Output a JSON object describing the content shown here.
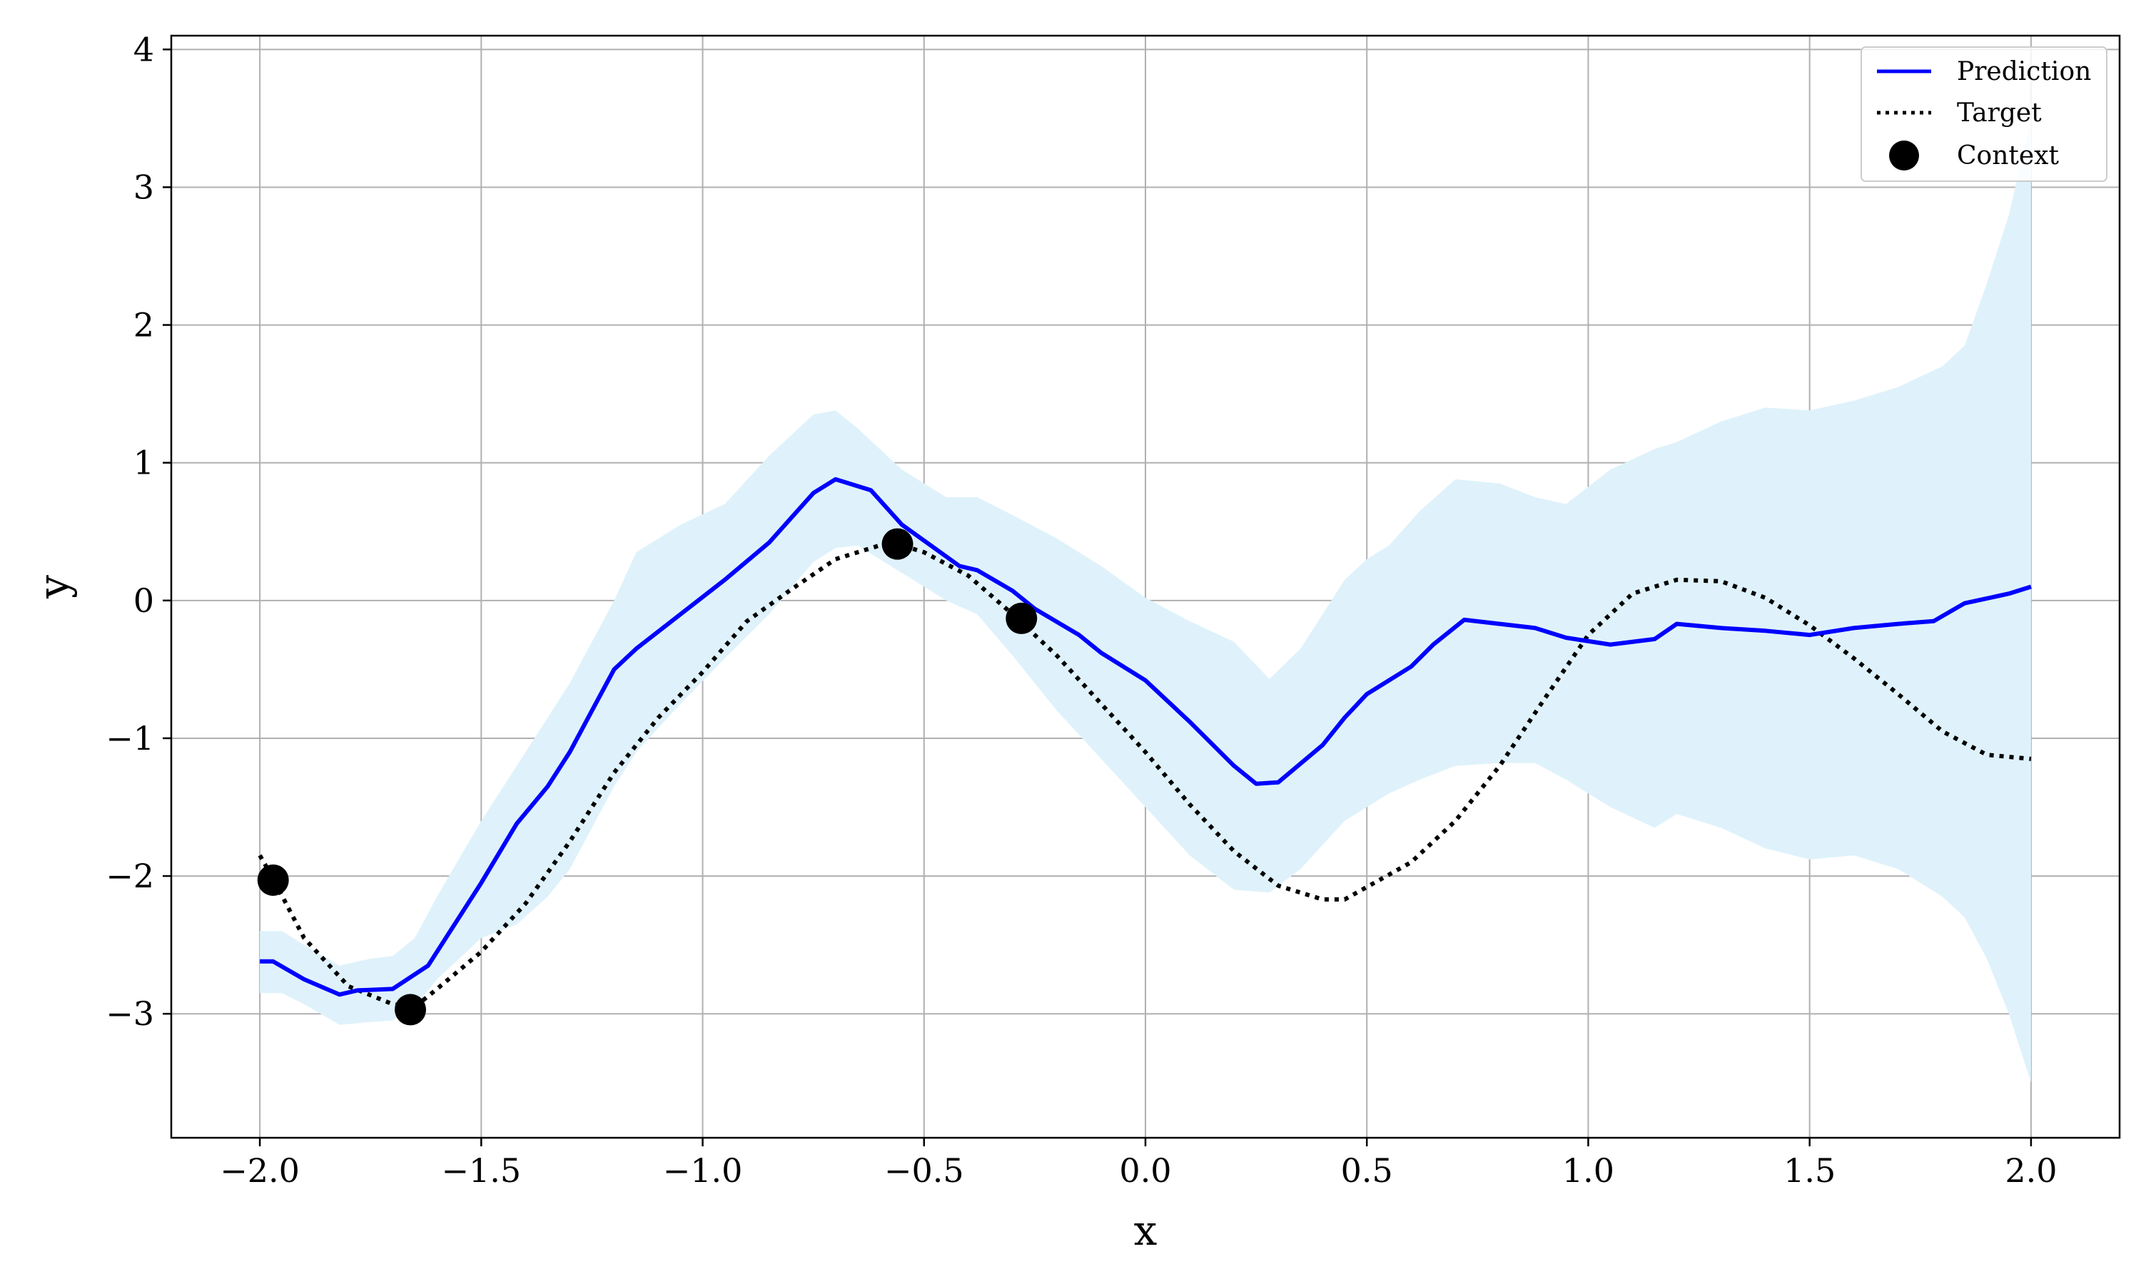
{
  "chart_data": {
    "type": "line",
    "title": "",
    "xlabel": "x",
    "ylabel": "y",
    "xlim": [
      -2.2,
      2.2
    ],
    "ylim": [
      -3.9,
      4.1
    ],
    "grid": true,
    "legend_position": "top-right",
    "x_ticks": [
      -2.0,
      -1.5,
      -1.0,
      -0.5,
      0.0,
      0.5,
      1.0,
      1.5,
      2.0
    ],
    "x_tick_labels": [
      "−2.0",
      "−1.5",
      "−1.0",
      "−0.5",
      "0.0",
      "0.5",
      "1.0",
      "1.5",
      "2.0"
    ],
    "y_ticks": [
      -3,
      -2,
      -1,
      0,
      1,
      2,
      3,
      4
    ],
    "y_tick_labels": [
      "−3",
      "−2",
      "−1",
      "0",
      "1",
      "2",
      "3",
      "4"
    ],
    "colors": {
      "prediction": "#0000ff",
      "target": "#000000",
      "context": "#000000",
      "band": "#dff2fb",
      "grid": "#b0b0b0"
    },
    "series": [
      {
        "name": "Prediction",
        "style": "solid",
        "x": [
          -2.0,
          -1.97,
          -1.9,
          -1.82,
          -1.78,
          -1.7,
          -1.62,
          -1.5,
          -1.42,
          -1.35,
          -1.3,
          -1.25,
          -1.2,
          -1.15,
          -1.05,
          -0.95,
          -0.85,
          -0.75,
          -0.7,
          -0.62,
          -0.55,
          -0.42,
          -0.38,
          -0.3,
          -0.25,
          -0.15,
          -0.1,
          0.0,
          0.1,
          0.2,
          0.25,
          0.3,
          0.4,
          0.45,
          0.5,
          0.6,
          0.65,
          0.72,
          0.8,
          0.88,
          0.95,
          1.05,
          1.15,
          1.2,
          1.3,
          1.4,
          1.5,
          1.6,
          1.7,
          1.78,
          1.85,
          1.95,
          2.0
        ],
        "y": [
          -2.62,
          -2.62,
          -2.75,
          -2.86,
          -2.83,
          -2.82,
          -2.65,
          -2.05,
          -1.62,
          -1.35,
          -1.1,
          -0.8,
          -0.5,
          -0.35,
          -0.1,
          0.15,
          0.42,
          0.78,
          0.88,
          0.8,
          0.55,
          0.25,
          0.22,
          0.07,
          -0.06,
          -0.25,
          -0.38,
          -0.58,
          -0.88,
          -1.2,
          -1.33,
          -1.32,
          -1.05,
          -0.85,
          -0.68,
          -0.48,
          -0.32,
          -0.14,
          -0.17,
          -0.2,
          -0.27,
          -0.32,
          -0.28,
          -0.17,
          -0.2,
          -0.22,
          -0.25,
          -0.2,
          -0.17,
          -0.15,
          -0.02,
          0.05,
          0.1
        ]
      },
      {
        "name": "Target",
        "style": "dotted",
        "x": [
          -2.0,
          -1.97,
          -1.9,
          -1.8,
          -1.7,
          -1.65,
          -1.6,
          -1.5,
          -1.4,
          -1.3,
          -1.2,
          -1.1,
          -1.0,
          -0.9,
          -0.8,
          -0.7,
          -0.6,
          -0.55,
          -0.5,
          -0.4,
          -0.3,
          -0.2,
          -0.1,
          0.0,
          0.1,
          0.2,
          0.3,
          0.4,
          0.45,
          0.5,
          0.6,
          0.7,
          0.8,
          0.9,
          1.0,
          1.1,
          1.2,
          1.3,
          1.4,
          1.5,
          1.6,
          1.7,
          1.8,
          1.9,
          2.0
        ],
        "y": [
          -1.85,
          -2.02,
          -2.45,
          -2.8,
          -2.93,
          -2.95,
          -2.82,
          -2.55,
          -2.2,
          -1.75,
          -1.25,
          -0.85,
          -0.52,
          -0.15,
          0.08,
          0.3,
          0.4,
          0.4,
          0.35,
          0.18,
          -0.1,
          -0.4,
          -0.75,
          -1.1,
          -1.48,
          -1.82,
          -2.07,
          -2.17,
          -2.17,
          -2.08,
          -1.9,
          -1.6,
          -1.2,
          -0.72,
          -0.25,
          0.05,
          0.15,
          0.14,
          0.02,
          -0.18,
          -0.42,
          -0.68,
          -0.95,
          -1.12,
          -1.15
        ]
      }
    ],
    "uncertainty_band": {
      "x": [
        -2.0,
        -1.95,
        -1.9,
        -1.82,
        -1.75,
        -1.7,
        -1.65,
        -1.6,
        -1.5,
        -1.42,
        -1.35,
        -1.3,
        -1.25,
        -1.2,
        -1.15,
        -1.05,
        -0.95,
        -0.85,
        -0.75,
        -0.7,
        -0.65,
        -0.55,
        -0.45,
        -0.38,
        -0.3,
        -0.2,
        -0.1,
        0.0,
        0.1,
        0.2,
        0.28,
        0.35,
        0.45,
        0.5,
        0.55,
        0.62,
        0.7,
        0.8,
        0.88,
        0.95,
        1.05,
        1.15,
        1.2,
        1.3,
        1.4,
        1.5,
        1.6,
        1.7,
        1.8,
        1.85,
        1.9,
        1.95,
        2.0
      ],
      "lower": [
        -2.85,
        -2.85,
        -2.93,
        -3.08,
        -3.06,
        -3.05,
        -2.95,
        -2.75,
        -2.45,
        -2.35,
        -2.15,
        -1.95,
        -1.65,
        -1.35,
        -1.1,
        -0.75,
        -0.42,
        -0.1,
        0.28,
        0.38,
        0.4,
        0.2,
        0.0,
        -0.1,
        -0.4,
        -0.8,
        -1.15,
        -1.5,
        -1.85,
        -2.1,
        -2.12,
        -1.95,
        -1.6,
        -1.5,
        -1.4,
        -1.3,
        -1.2,
        -1.18,
        -1.18,
        -1.3,
        -1.5,
        -1.65,
        -1.55,
        -1.65,
        -1.8,
        -1.88,
        -1.85,
        -1.95,
        -2.15,
        -2.3,
        -2.6,
        -3.0,
        -3.5
      ],
      "upper": [
        -2.4,
        -2.4,
        -2.5,
        -2.65,
        -2.6,
        -2.58,
        -2.45,
        -2.15,
        -1.6,
        -1.2,
        -0.85,
        -0.6,
        -0.3,
        0.0,
        0.35,
        0.55,
        0.7,
        1.05,
        1.35,
        1.38,
        1.25,
        0.95,
        0.75,
        0.75,
        0.62,
        0.45,
        0.25,
        0.02,
        -0.15,
        -0.3,
        -0.57,
        -0.35,
        0.15,
        0.3,
        0.4,
        0.65,
        0.88,
        0.85,
        0.75,
        0.7,
        0.95,
        1.1,
        1.15,
        1.3,
        1.4,
        1.38,
        1.45,
        1.55,
        1.7,
        1.85,
        2.3,
        2.8,
        3.5
      ]
    },
    "context_points": {
      "name": "Context",
      "x": [
        -1.97,
        -1.66,
        -0.56,
        -0.28
      ],
      "y": [
        -2.03,
        -2.97,
        0.41,
        -0.13
      ]
    }
  }
}
